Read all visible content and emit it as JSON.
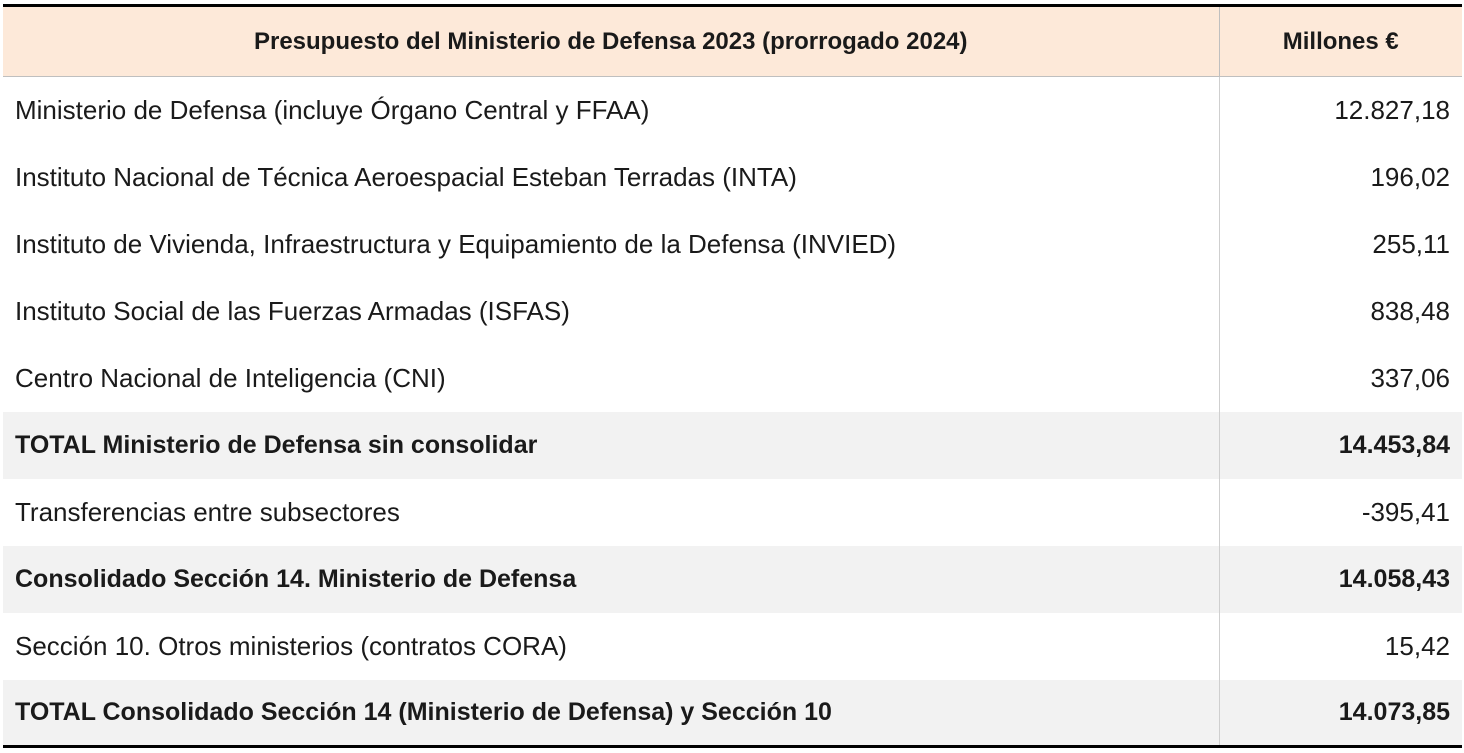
{
  "header": {
    "label": "Presupuesto del Ministerio de Defensa 2023 (prorrogado 2024)",
    "value": "Millones €"
  },
  "rows": [
    {
      "label": "Ministerio de Defensa (incluye Órgano Central y FFAA)",
      "value": "12.827,18"
    },
    {
      "label": "Instituto Nacional de Técnica Aeroespacial Esteban Terradas (INTA)",
      "value": "196,02"
    },
    {
      "label": "Instituto de Vivienda, Infraestructura y Equipamiento de la Defensa (INVIED)",
      "value": "255,11"
    },
    {
      "label": "Instituto Social de las Fuerzas Armadas (ISFAS)",
      "value": "838,48"
    },
    {
      "label": "Centro Nacional de Inteligencia (CNI)",
      "value": "337,06"
    },
    {
      "label": "TOTAL Ministerio de Defensa sin consolidar",
      "value": "14.453,84"
    },
    {
      "label": "Transferencias entre subsectores",
      "value": "-395,41"
    },
    {
      "label": "Consolidado Sección 14. Ministerio de Defensa",
      "value": "14.058,43"
    },
    {
      "label": "Sección 10. Otros ministerios (contratos CORA)",
      "value": "15,42"
    },
    {
      "label": "TOTAL Consolidado Sección 14 (Ministerio de Defensa) y Sección 10",
      "value": "14.073,85"
    }
  ],
  "colors": {
    "header_background": "#fde9d9",
    "total_row_background": "#f2f2f2"
  }
}
